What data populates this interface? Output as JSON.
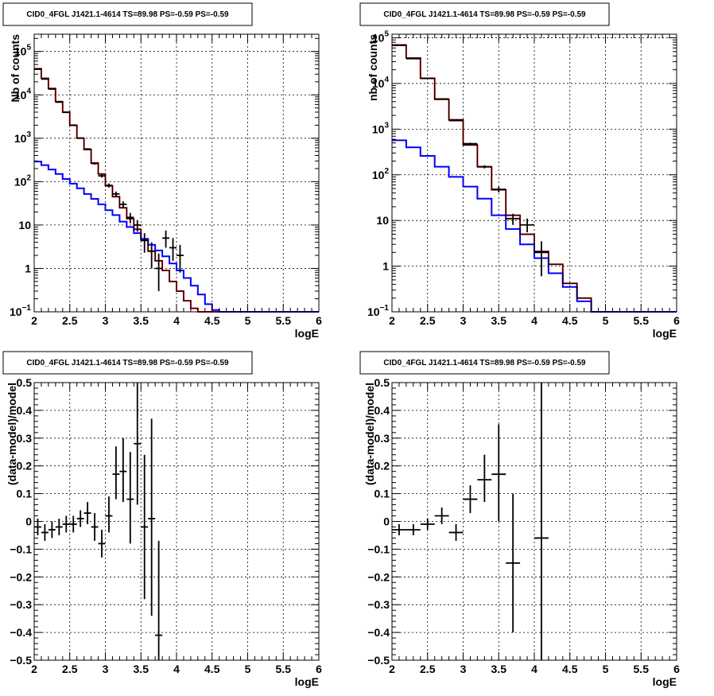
{
  "chart_data": [
    {
      "type": "histogram",
      "title": "CID0_4FGL J1421.1-4614 TS=89.98 PS=-0.59 PS=-0.59",
      "xlabel": "logE",
      "ylabel": "Nb of counts",
      "xlim": [
        2,
        6
      ],
      "ylim": [
        0.1,
        250000
      ],
      "yscale": "log",
      "grid": true,
      "xticks": [
        "2",
        "2.5",
        "3",
        "3.5",
        "4",
        "4.5",
        "5",
        "5.5",
        "6"
      ],
      "yticks": [
        {
          "v": 0.1,
          "m": "10",
          "e": "−1"
        },
        {
          "v": 1,
          "m": "1",
          "e": ""
        },
        {
          "v": 10,
          "m": "10",
          "e": ""
        },
        {
          "v": 100,
          "m": "10",
          "e": "2"
        },
        {
          "v": 1000,
          "m": "10",
          "e": "3"
        },
        {
          "v": 10000,
          "m": "10",
          "e": "4"
        },
        {
          "v": 100000,
          "m": "10",
          "e": "5"
        }
      ],
      "bin_edges": [
        2.0,
        2.1,
        2.2,
        2.3,
        2.4,
        2.5,
        2.6,
        2.7,
        2.8,
        2.9,
        3.0,
        3.1,
        3.2,
        3.3,
        3.4,
        3.5,
        3.6,
        3.7,
        3.8,
        3.9,
        4.0,
        4.1,
        4.2,
        4.3,
        4.4,
        4.5,
        4.6,
        4.7,
        4.8,
        4.9,
        5.0,
        5.1,
        5.2,
        5.3,
        5.4,
        5.5,
        5.6,
        5.7,
        5.8,
        5.9,
        6.0
      ],
      "series": [
        {
          "color": "#ff0000",
          "values": [
            40000,
            24000,
            14000,
            7000,
            4000,
            2000,
            1000,
            550,
            270,
            150,
            80,
            45,
            25,
            14,
            8,
            4.5,
            2.5,
            1.5,
            0.9,
            0.5,
            0.3,
            0.18,
            0.12,
            0.1,
            0.1,
            0.1,
            0.1,
            0.1,
            0.1,
            0.1,
            0.1,
            0.1,
            0.1,
            0.1,
            0.1,
            0.1,
            0.1,
            0.1,
            0.1,
            0.1
          ]
        },
        {
          "color": "#0000ff",
          "values": [
            290,
            240,
            190,
            150,
            115,
            90,
            70,
            52,
            40,
            30,
            22,
            17,
            12,
            9,
            6.5,
            4.8,
            3.5,
            2.6,
            1.9,
            1.3,
            0.9,
            0.6,
            0.4,
            0.25,
            0.15,
            0.11,
            0.1,
            0.1,
            0.1,
            0.1,
            0.1,
            0.1,
            0.1,
            0.1,
            0.1,
            0.1,
            0.1,
            0.1,
            0.1,
            0.1
          ]
        },
        {
          "color": "#000000",
          "values": [
            40000,
            24000,
            14000,
            7000,
            4000,
            2000,
            1000,
            550,
            270,
            150,
            80,
            45,
            25,
            14,
            8,
            4.5,
            2.5,
            1.5,
            0.9,
            0.5,
            0.3,
            0.18,
            0.12,
            0.1,
            0.1,
            0.1,
            0.1,
            0.1,
            0.1,
            0.1,
            0.1,
            0.1,
            0.1,
            0.1,
            0.1,
            0.1,
            0.1,
            0.1,
            0.1,
            0.1
          ]
        }
      ],
      "points": [
        {
          "x": 2.05,
          "y": 39000,
          "lo": 38600,
          "hi": 39400
        },
        {
          "x": 2.15,
          "y": 23100,
          "lo": 22800,
          "hi": 23400
        },
        {
          "x": 2.25,
          "y": 13600,
          "lo": 13400,
          "hi": 13800
        },
        {
          "x": 2.35,
          "y": 6800,
          "lo": 6650,
          "hi": 6950
        },
        {
          "x": 2.45,
          "y": 3950,
          "lo": 3850,
          "hi": 4050
        },
        {
          "x": 2.55,
          "y": 1980,
          "lo": 1930,
          "hi": 2030
        },
        {
          "x": 2.65,
          "y": 1010,
          "lo": 980,
          "hi": 1040
        },
        {
          "x": 2.75,
          "y": 565,
          "lo": 541,
          "hi": 589
        },
        {
          "x": 2.85,
          "y": 262,
          "lo": 246,
          "hi": 278
        },
        {
          "x": 2.95,
          "y": 136,
          "lo": 124,
          "hi": 148
        },
        {
          "x": 3.05,
          "y": 82,
          "lo": 73,
          "hi": 91
        },
        {
          "x": 3.15,
          "y": 52,
          "lo": 45,
          "hi": 59
        },
        {
          "x": 3.25,
          "y": 30,
          "lo": 25,
          "hi": 35
        },
        {
          "x": 3.35,
          "y": 15,
          "lo": 11,
          "hi": 19
        },
        {
          "x": 3.45,
          "y": 10,
          "lo": 7,
          "hi": 13
        },
        {
          "x": 3.55,
          "y": 4.4,
          "lo": 2.3,
          "hi": 6.5
        },
        {
          "x": 3.65,
          "y": 2.5,
          "lo": 1,
          "hi": 4
        },
        {
          "x": 3.75,
          "y": 1,
          "lo": 0.3,
          "hi": 2.2
        },
        {
          "x": 3.85,
          "y": 5,
          "lo": 3,
          "hi": 7.5
        },
        {
          "x": 3.95,
          "y": 3,
          "lo": 1.5,
          "hi": 5
        },
        {
          "x": 4.05,
          "y": 2,
          "lo": 0.8,
          "hi": 3.5
        }
      ]
    },
    {
      "type": "histogram",
      "title": "CID0_4FGL J1421.1-4614 TS=89.98 PS=-0.59 PS=-0.59",
      "xlabel": "logE",
      "ylabel": "nb of counts",
      "xlim": [
        2,
        6
      ],
      "ylim": [
        0.1,
        120000
      ],
      "yscale": "log",
      "grid": true,
      "xticks": [
        "2",
        "2.5",
        "3",
        "3.5",
        "4",
        "4.5",
        "5",
        "5.5",
        "6"
      ],
      "yticks": [
        {
          "v": 0.1,
          "m": "10",
          "e": "−1"
        },
        {
          "v": 1,
          "m": "1",
          "e": ""
        },
        {
          "v": 10,
          "m": "10",
          "e": ""
        },
        {
          "v": 100,
          "m": "10",
          "e": "2"
        },
        {
          "v": 1000,
          "m": "10",
          "e": "3"
        },
        {
          "v": 10000,
          "m": "10",
          "e": "4"
        },
        {
          "v": 100000,
          "m": "10",
          "e": "5"
        }
      ],
      "bin_edges": [
        2.0,
        2.2,
        2.4,
        2.6,
        2.8,
        3.0,
        3.2,
        3.4,
        3.6,
        3.8,
        4.0,
        4.2,
        4.4,
        4.6,
        4.8,
        5.0,
        5.2,
        5.4,
        5.6,
        5.8,
        6.0
      ],
      "series": [
        {
          "color": "#ff0000",
          "values": [
            70000,
            36000,
            13000,
            4500,
            1600,
            450,
            150,
            47,
            13,
            5,
            2.1,
            1.1,
            0.42,
            0.2,
            0.1,
            0.1,
            0.1,
            0.1,
            0.1,
            0.1
          ]
        },
        {
          "color": "#0000ff",
          "values": [
            570,
            400,
            260,
            150,
            90,
            55,
            30,
            13,
            6.5,
            3,
            1.5,
            0.7,
            0.35,
            0.17,
            0.1,
            0.1,
            0.1,
            0.1,
            0.1,
            0.1
          ]
        },
        {
          "color": "#000000",
          "values": [
            70000,
            36000,
            13000,
            4500,
            1600,
            450,
            150,
            47,
            13,
            5,
            2.1,
            1.1,
            0.42,
            0.2,
            0.1,
            0.1,
            0.1,
            0.1,
            0.1,
            0.1
          ]
        }
      ],
      "points": [
        {
          "x": 2.1,
          "y": 68000,
          "lo": 67500,
          "hi": 68500
        },
        {
          "x": 2.3,
          "y": 35000,
          "lo": 34700,
          "hi": 35300
        },
        {
          "x": 2.5,
          "y": 12900,
          "lo": 12750,
          "hi": 13050
        },
        {
          "x": 2.7,
          "y": 4580,
          "lo": 4500,
          "hi": 4660
        },
        {
          "x": 2.9,
          "y": 1540,
          "lo": 1490,
          "hi": 1590
        },
        {
          "x": 3.1,
          "y": 480,
          "lo": 455,
          "hi": 505
        },
        {
          "x": 3.3,
          "y": 150,
          "lo": 138,
          "hi": 162
        },
        {
          "x": 3.5,
          "y": 48,
          "lo": 41,
          "hi": 55
        },
        {
          "x": 3.7,
          "y": 11,
          "lo": 8,
          "hi": 14
        },
        {
          "x": 3.9,
          "y": 8,
          "lo": 5.5,
          "hi": 11
        },
        {
          "x": 4.1,
          "y": 2,
          "lo": 0.6,
          "hi": 3.5
        }
      ]
    },
    {
      "type": "scatter",
      "title": "CID0_4FGL J1421.1-4614 TS=89.98 PS=-0.59 PS=-0.59",
      "xlabel": "logE",
      "ylabel": "(data-model)/model",
      "xlim": [
        2,
        6
      ],
      "ylim": [
        -0.5,
        0.5
      ],
      "yscale": "linear",
      "grid": true,
      "xticks": [
        "2",
        "2.5",
        "3",
        "3.5",
        "4",
        "4.5",
        "5",
        "5.5",
        "6"
      ],
      "yticks_linear": [
        -0.5,
        -0.4,
        -0.3,
        -0.2,
        -0.1,
        0,
        0.1,
        0.2,
        0.3,
        0.4,
        0.5
      ],
      "ytick_labels": [
        "−0.5",
        "−0.4",
        "−0.3",
        "−0.2",
        "−0.1",
        "0",
        "0.1",
        "0.2",
        "0.3",
        "0.4",
        "0.5"
      ],
      "xerr": 0.05,
      "points": [
        {
          "x": 2.05,
          "y": -0.02,
          "lo": -0.05,
          "hi": 0.01
        },
        {
          "x": 2.15,
          "y": -0.04,
          "lo": -0.07,
          "hi": -0.01
        },
        {
          "x": 2.25,
          "y": -0.03,
          "lo": -0.06,
          "hi": 0.0
        },
        {
          "x": 2.35,
          "y": -0.02,
          "lo": -0.05,
          "hi": 0.01
        },
        {
          "x": 2.45,
          "y": -0.01,
          "lo": -0.04,
          "hi": 0.02
        },
        {
          "x": 2.55,
          "y": -0.01,
          "lo": -0.04,
          "hi": 0.02
        },
        {
          "x": 2.65,
          "y": 0.01,
          "lo": -0.02,
          "hi": 0.04
        },
        {
          "x": 2.75,
          "y": 0.03,
          "lo": -0.01,
          "hi": 0.07
        },
        {
          "x": 2.85,
          "y": -0.02,
          "lo": -0.07,
          "hi": 0.03
        },
        {
          "x": 2.95,
          "y": -0.08,
          "lo": -0.13,
          "hi": -0.03
        },
        {
          "x": 3.05,
          "y": 0.02,
          "lo": -0.04,
          "hi": 0.09
        },
        {
          "x": 3.15,
          "y": 0.17,
          "lo": 0.08,
          "hi": 0.27
        },
        {
          "x": 3.25,
          "y": 0.18,
          "lo": 0.07,
          "hi": 0.3
        },
        {
          "x": 3.35,
          "y": 0.08,
          "lo": -0.08,
          "hi": 0.25
        },
        {
          "x": 3.45,
          "y": 0.28,
          "lo": 0.06,
          "hi": 0.5
        },
        {
          "x": 3.55,
          "y": -0.02,
          "lo": -0.28,
          "hi": 0.24
        },
        {
          "x": 3.65,
          "y": 0.01,
          "lo": -0.34,
          "hi": 0.37
        },
        {
          "x": 3.75,
          "y": -0.41,
          "lo": -0.5,
          "hi": -0.07
        }
      ]
    },
    {
      "type": "scatter",
      "title": "CID0_4FGL J1421.1-4614 TS=89.98 PS=-0.59 PS=-0.59",
      "xlabel": "logE",
      "ylabel": "(data-model)/model",
      "xlim": [
        2,
        6
      ],
      "ylim": [
        -0.5,
        0.5
      ],
      "yscale": "linear",
      "grid": true,
      "xticks": [
        "2",
        "2.5",
        "3",
        "3.5",
        "4",
        "4.5",
        "5",
        "5.5",
        "6"
      ],
      "yticks_linear": [
        -0.5,
        -0.4,
        -0.3,
        -0.2,
        -0.1,
        0,
        0.1,
        0.2,
        0.3,
        0.4,
        0.5
      ],
      "ytick_labels": [
        "−0.5",
        "−0.4",
        "−0.3",
        "−0.2",
        "−0.1",
        "0",
        "0.1",
        "0.2",
        "0.3",
        "0.4",
        "0.5"
      ],
      "xerr": 0.1,
      "points": [
        {
          "x": 2.1,
          "y": -0.03,
          "lo": -0.05,
          "hi": -0.01
        },
        {
          "x": 2.3,
          "y": -0.03,
          "lo": -0.05,
          "hi": -0.01
        },
        {
          "x": 2.5,
          "y": -0.01,
          "lo": -0.03,
          "hi": 0.01
        },
        {
          "x": 2.7,
          "y": 0.02,
          "lo": -0.01,
          "hi": 0.05
        },
        {
          "x": 2.9,
          "y": -0.04,
          "lo": -0.07,
          "hi": -0.01
        },
        {
          "x": 3.1,
          "y": 0.08,
          "lo": 0.03,
          "hi": 0.13
        },
        {
          "x": 3.3,
          "y": 0.15,
          "lo": 0.07,
          "hi": 0.24
        },
        {
          "x": 3.5,
          "y": 0.17,
          "lo": 0.0,
          "hi": 0.35
        },
        {
          "x": 3.7,
          "y": -0.15,
          "lo": -0.4,
          "hi": 0.1
        },
        {
          "x": 4.1,
          "y": -0.06,
          "lo": -0.5,
          "hi": 0.5
        }
      ]
    }
  ]
}
